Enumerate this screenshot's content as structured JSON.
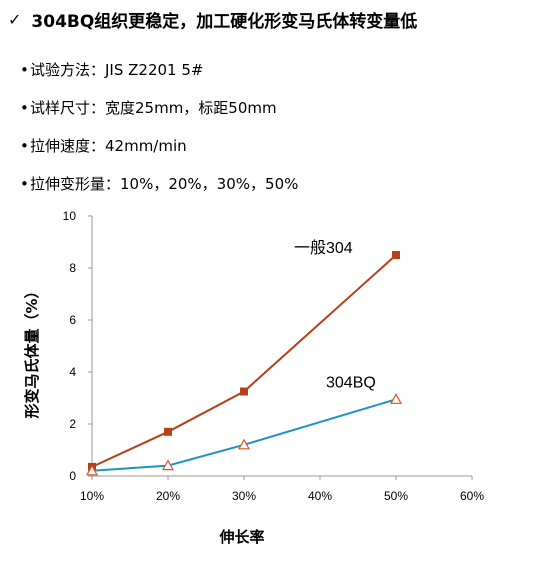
{
  "headline": {
    "check": "✓",
    "text": "304BQ组织更稳定，加工硬化形变马氏体转变量低"
  },
  "bullets": [
    {
      "text": "试验方法：JIS Z2201 5#"
    },
    {
      "text": "试样尺寸：宽度25mm，标距50mm"
    },
    {
      "text": "拉伸速度：42mm/min"
    },
    {
      "text": "拉伸变形量：10%，20%，30%，50%"
    }
  ],
  "chart_data": {
    "type": "line",
    "x": [
      0.1,
      0.2,
      0.3,
      0.5
    ],
    "xticks": [
      "10%",
      "20%",
      "30%",
      "40%",
      "50%",
      "60%"
    ],
    "xlim": [
      0.1,
      0.6
    ],
    "yticks": [
      "0",
      "2",
      "4",
      "6",
      "8",
      "10"
    ],
    "ylim": [
      0,
      10
    ],
    "xlabel": "伸长率",
    "ylabel": "形变马氏体量（%）",
    "grid": false,
    "series": [
      {
        "name": "一般304",
        "color": "#B5401A",
        "marker": "square",
        "values": [
          0.35,
          1.7,
          3.25,
          8.5
        ]
      },
      {
        "name": "304BQ",
        "color": "#1F93C0",
        "marker": "triangle-open",
        "markerColor": "#D9542C",
        "values": [
          0.2,
          0.4,
          1.2,
          2.95
        ]
      }
    ]
  }
}
